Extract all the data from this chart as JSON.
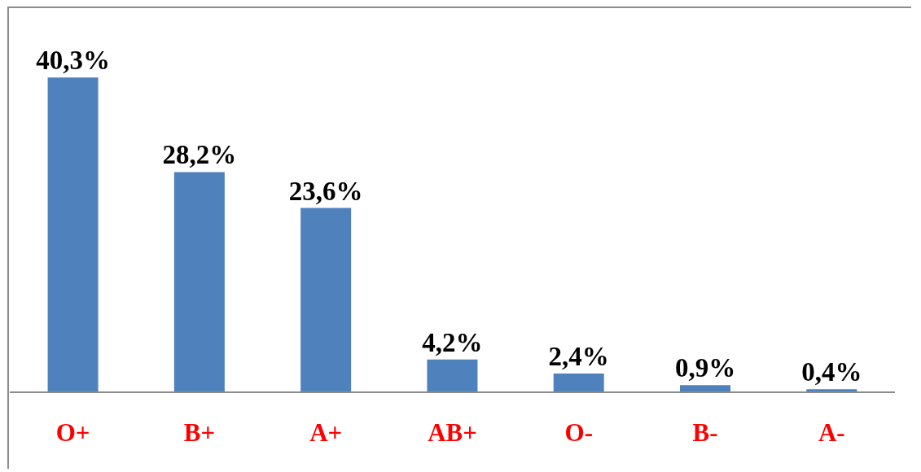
{
  "chart_data": {
    "type": "bar",
    "categories": [
      "O+",
      "B+",
      "A+",
      "AB+",
      "O-",
      "B-",
      "A-"
    ],
    "values": [
      40.3,
      28.2,
      23.6,
      4.2,
      2.4,
      0.9,
      0.4
    ],
    "value_labels": [
      "40,3%",
      "28,2%",
      "23,6%",
      "4,2%",
      "2,4%",
      "0,9%",
      "0,4%"
    ],
    "color": "#4f81bd",
    "grid": false,
    "legend": false
  }
}
